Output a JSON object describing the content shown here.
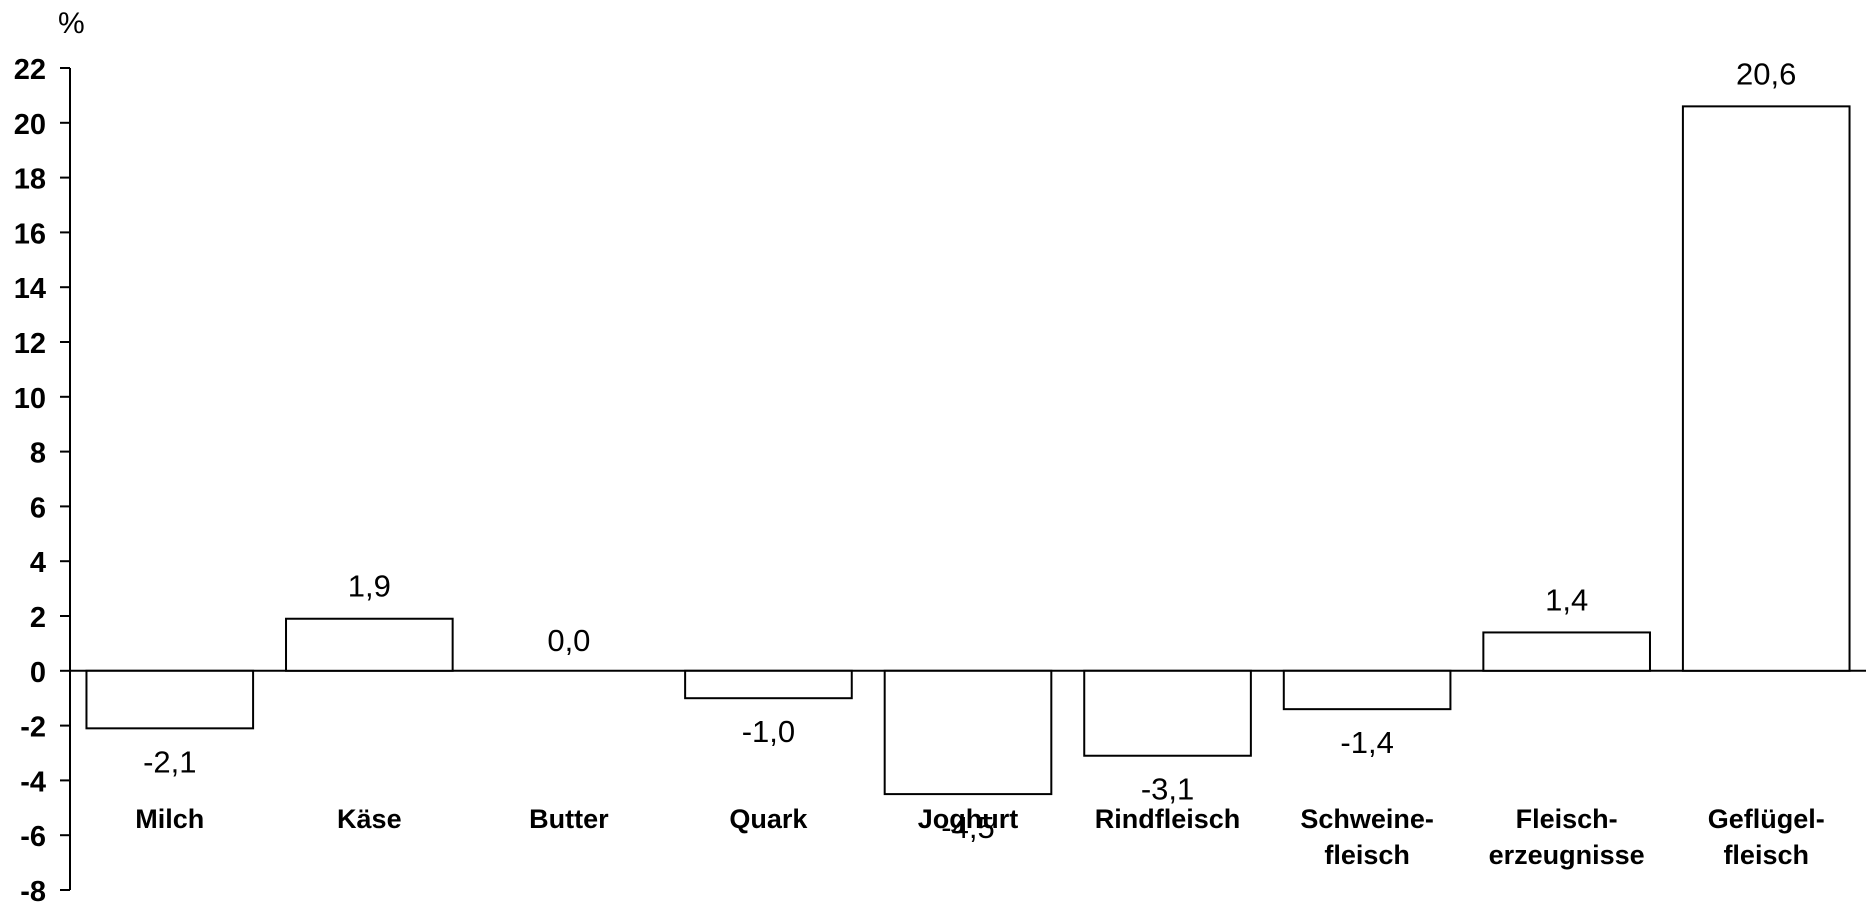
{
  "chart_data": {
    "type": "bar",
    "unit_label": "%",
    "categories": [
      [
        "Milch"
      ],
      [
        "Käse"
      ],
      [
        "Butter"
      ],
      [
        "Quark"
      ],
      [
        "Joghurt"
      ],
      [
        "Rindfleisch"
      ],
      [
        "Schweine-",
        "fleisch"
      ],
      [
        "Fleisch-",
        "erzeugnisse"
      ],
      [
        "Geflügel-",
        "fleisch"
      ]
    ],
    "values": [
      -2.1,
      1.9,
      0.0,
      -1.0,
      -4.5,
      -3.1,
      -1.4,
      1.4,
      20.6
    ],
    "value_labels": [
      "-2,1",
      "1,9",
      "0,0",
      "-1,0",
      "-4,5",
      "-3,1",
      "-1,4",
      "1,4",
      "20,6"
    ],
    "y_ticks": [
      "22",
      "20",
      "18",
      "16",
      "14",
      "12",
      "10",
      "8",
      "6",
      "4",
      "2",
      "0",
      "-2",
      "-4",
      "-6",
      "-8"
    ],
    "ylim": [
      -8,
      22
    ],
    "grid": false,
    "bar_fill": "#ffffff",
    "bar_stroke": "#000000"
  }
}
